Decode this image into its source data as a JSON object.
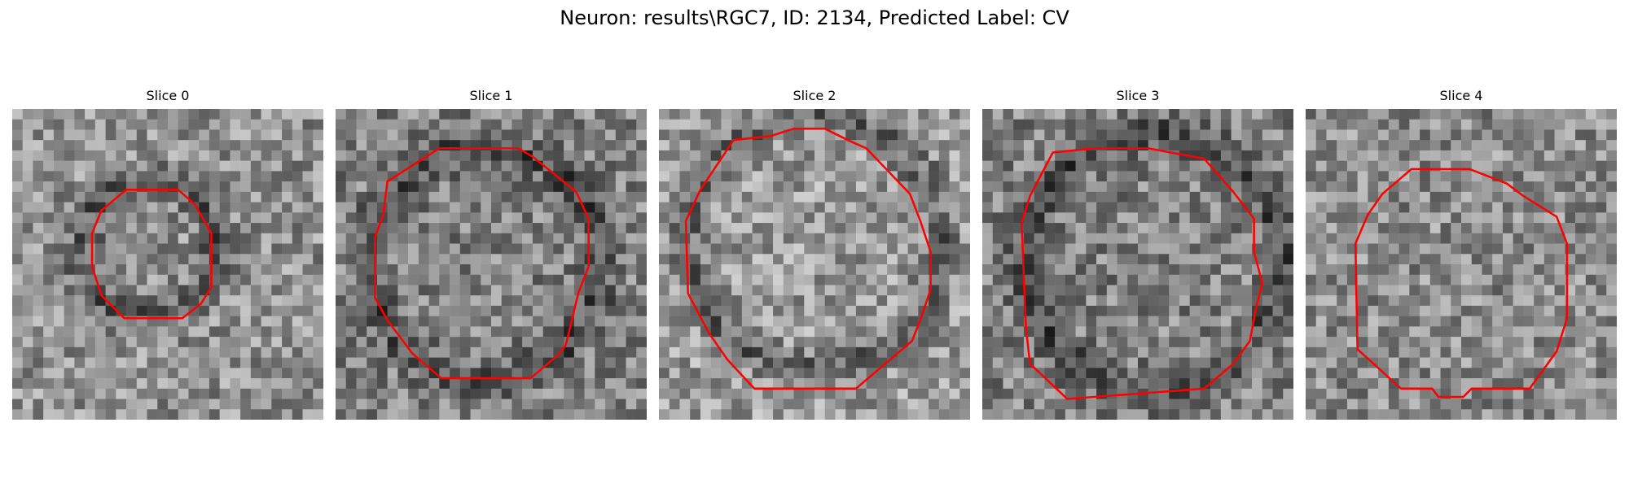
{
  "title": "Neuron: results\\RGC7, ID: 2134, Predicted Label: CV",
  "colors": {
    "contour": "#ff0000",
    "background": "#ffffff"
  },
  "grid_size": 30,
  "panels": [
    {
      "title": "Slice 0",
      "gray_mean": 145,
      "dark_ring": true,
      "contour": [
        [
          10.5,
          8.2
        ],
        [
          11.0,
          7.8
        ],
        [
          16.0,
          7.8
        ],
        [
          17.6,
          9.2
        ],
        [
          19.2,
          12.0
        ],
        [
          19.2,
          17.2
        ],
        [
          18.2,
          18.8
        ],
        [
          16.4,
          20.2
        ],
        [
          10.8,
          20.2
        ],
        [
          8.6,
          18.0
        ],
        [
          7.7,
          15.2
        ],
        [
          7.7,
          12.0
        ],
        [
          8.6,
          9.8
        ]
      ]
    },
    {
      "title": "Slice 1",
      "gray_mean": 130,
      "dark_ring": true,
      "contour": [
        [
          5.0,
          7.0
        ],
        [
          10.0,
          3.8
        ],
        [
          17.6,
          3.8
        ],
        [
          19.0,
          4.6
        ],
        [
          23.2,
          8.0
        ],
        [
          24.4,
          10.6
        ],
        [
          24.4,
          15.2
        ],
        [
          23.4,
          17.8
        ],
        [
          22.2,
          22.8
        ],
        [
          21.4,
          23.8
        ],
        [
          18.8,
          26.0
        ],
        [
          10.2,
          26.0
        ],
        [
          7.4,
          23.6
        ],
        [
          5.0,
          20.4
        ],
        [
          3.8,
          18.2
        ],
        [
          3.8,
          12.4
        ],
        [
          4.6,
          10.2
        ]
      ]
    },
    {
      "title": "Slice 2",
      "gray_mean": 155,
      "dark_ring": true,
      "contour": [
        [
          7.2,
          3.0
        ],
        [
          10.8,
          2.6
        ],
        [
          13.0,
          1.9
        ],
        [
          16.0,
          1.9
        ],
        [
          18.2,
          3.0
        ],
        [
          20.0,
          3.8
        ],
        [
          24.2,
          8.2
        ],
        [
          25.2,
          10.8
        ],
        [
          26.2,
          13.8
        ],
        [
          26.2,
          17.4
        ],
        [
          25.2,
          20.4
        ],
        [
          24.4,
          22.4
        ],
        [
          19.0,
          27.0
        ],
        [
          9.2,
          27.0
        ],
        [
          6.6,
          24.2
        ],
        [
          4.8,
          21.6
        ],
        [
          2.8,
          17.8
        ],
        [
          2.6,
          10.8
        ],
        [
          4.0,
          7.8
        ]
      ]
    },
    {
      "title": "Slice 3",
      "gray_mean": 130,
      "dark_ring": true,
      "contour": [
        [
          6.8,
          4.2
        ],
        [
          10.8,
          3.8
        ],
        [
          16.0,
          3.8
        ],
        [
          21.4,
          4.8
        ],
        [
          24.2,
          8.0
        ],
        [
          26.2,
          10.6
        ],
        [
          26.2,
          13.8
        ],
        [
          27.0,
          16.8
        ],
        [
          26.4,
          19.2
        ],
        [
          25.8,
          22.4
        ],
        [
          24.2,
          24.6
        ],
        [
          21.4,
          27.0
        ],
        [
          8.2,
          28.0
        ],
        [
          4.6,
          24.6
        ],
        [
          4.2,
          21.0
        ],
        [
          3.8,
          11.0
        ],
        [
          4.6,
          8.4
        ]
      ]
    },
    {
      "title": "Slice 4",
      "gray_mean": 140,
      "dark_ring": false,
      "contour": [
        [
          10.2,
          5.8
        ],
        [
          15.8,
          5.8
        ],
        [
          19.4,
          7.2
        ],
        [
          21.0,
          8.4
        ],
        [
          24.2,
          10.4
        ],
        [
          25.2,
          13.0
        ],
        [
          25.2,
          20.2
        ],
        [
          24.2,
          23.4
        ],
        [
          21.6,
          27.0
        ],
        [
          16.0,
          27.0
        ],
        [
          15.2,
          27.8
        ],
        [
          12.8,
          27.8
        ],
        [
          12.2,
          27.0
        ],
        [
          9.2,
          27.0
        ],
        [
          5.0,
          23.2
        ],
        [
          4.8,
          13.0
        ],
        [
          6.0,
          10.2
        ],
        [
          7.4,
          8.2
        ]
      ]
    }
  ]
}
